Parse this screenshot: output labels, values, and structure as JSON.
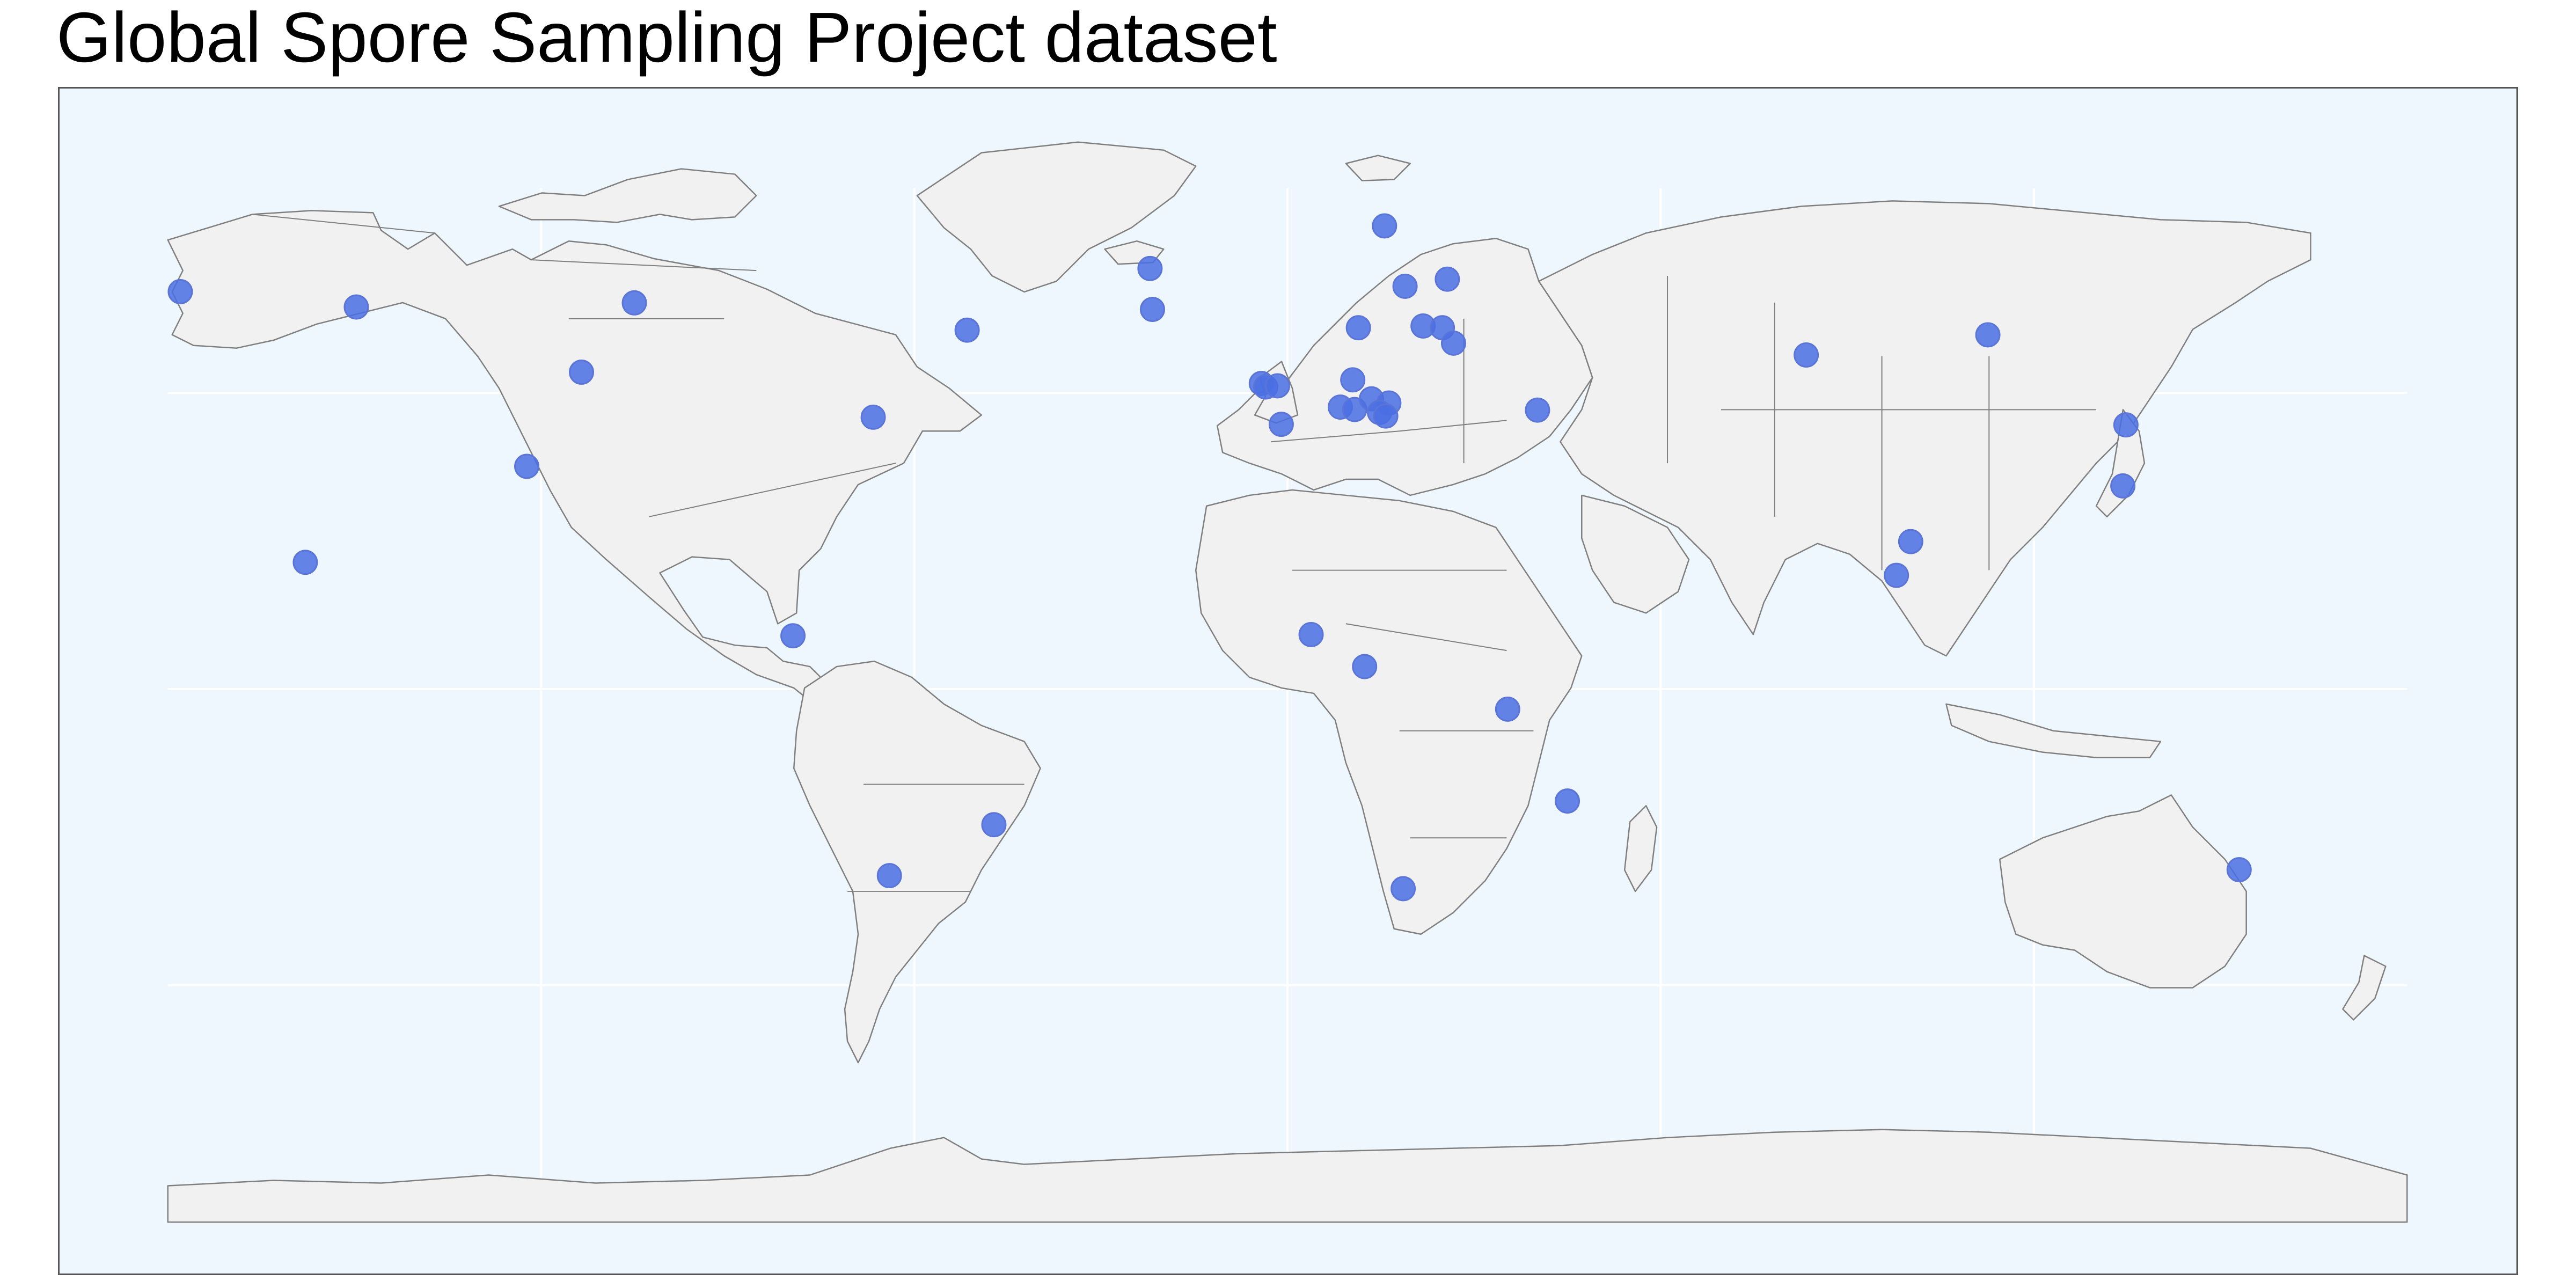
{
  "title": "Global Spore Sampling Project dataset",
  "map": {
    "projection": "equirectangular",
    "ocean_color": "#eef7fd",
    "land_color": "#f1f1f1",
    "coastline_color": "#7f7f7f",
    "marker_color": "#4a6fe3",
    "marker_opacity": 0.85,
    "lat_range": [
      -90,
      90
    ],
    "lon_range": [
      -180,
      180
    ],
    "graticule_lon": [
      -120,
      -60,
      0,
      60,
      120
    ],
    "graticule_lat": [
      -50,
      0,
      50
    ],
    "points": [
      {
        "lon": -178.0,
        "lat": 67.1
      },
      {
        "lon": -149.7,
        "lat": 64.5
      },
      {
        "lon": -105.0,
        "lat": 65.2
      },
      {
        "lon": -113.5,
        "lat": 53.5
      },
      {
        "lon": -122.3,
        "lat": 37.6
      },
      {
        "lon": -157.9,
        "lat": 21.4
      },
      {
        "lon": -66.6,
        "lat": 45.9
      },
      {
        "lon": -79.5,
        "lat": 9.0
      },
      {
        "lon": -51.5,
        "lat": 60.6
      },
      {
        "lon": -22.1,
        "lat": 71.0
      },
      {
        "lon": -21.7,
        "lat": 64.1
      },
      {
        "lon": 15.6,
        "lat": 78.2
      },
      {
        "lon": 25.7,
        "lat": 69.2
      },
      {
        "lon": 18.9,
        "lat": 68.0
      },
      {
        "lon": 11.4,
        "lat": 61.0
      },
      {
        "lon": 21.8,
        "lat": 61.3
      },
      {
        "lon": 24.9,
        "lat": 61.0
      },
      {
        "lon": 26.7,
        "lat": 58.4
      },
      {
        "lon": -4.2,
        "lat": 51.6
      },
      {
        "lon": -3.5,
        "lat": 51.0
      },
      {
        "lon": -1.6,
        "lat": 51.2
      },
      {
        "lon": 10.5,
        "lat": 52.2
      },
      {
        "lon": 8.5,
        "lat": 47.6
      },
      {
        "lon": 10.8,
        "lat": 47.2
      },
      {
        "lon": 13.5,
        "lat": 49.0
      },
      {
        "lon": 16.3,
        "lat": 48.3
      },
      {
        "lon": 14.8,
        "lat": 46.7
      },
      {
        "lon": 15.8,
        "lat": 46.1
      },
      {
        "lon": -1.0,
        "lat": 44.7
      },
      {
        "lon": 40.2,
        "lat": 47.1
      },
      {
        "lon": 83.4,
        "lat": 56.4
      },
      {
        "lon": 112.6,
        "lat": 59.8
      },
      {
        "lon": 134.8,
        "lat": 44.6
      },
      {
        "lon": 134.3,
        "lat": 34.3
      },
      {
        "lon": 100.2,
        "lat": 24.9
      },
      {
        "lon": 97.9,
        "lat": 19.2
      },
      {
        "lon": 3.8,
        "lat": 9.2
      },
      {
        "lon": 12.4,
        "lat": 3.8
      },
      {
        "lon": 35.4,
        "lat": -3.4
      },
      {
        "lon": 45.0,
        "lat": -18.9
      },
      {
        "lon": 18.6,
        "lat": -33.7
      },
      {
        "lon": -47.2,
        "lat": -22.9
      },
      {
        "lon": -64.0,
        "lat": -31.5
      },
      {
        "lon": 153.0,
        "lat": -30.5
      }
    ]
  }
}
